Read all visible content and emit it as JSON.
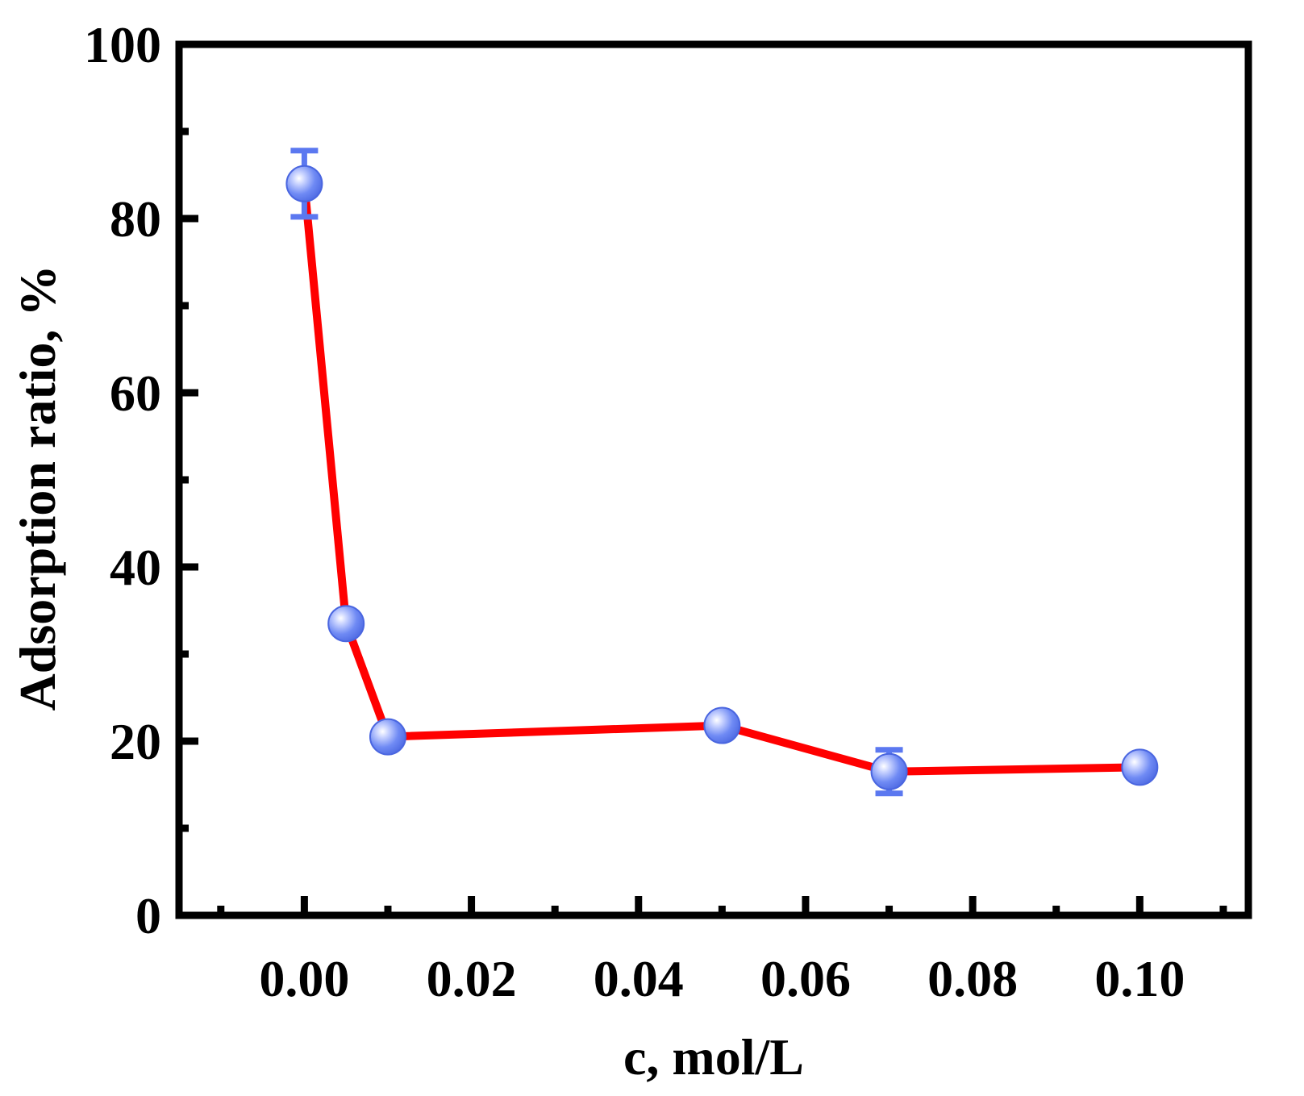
{
  "chart_data": {
    "type": "line",
    "title": "",
    "xlabel": "c, mol/L",
    "ylabel": "Adsorption ratio, %",
    "xlim": [
      -0.015,
      0.113
    ],
    "ylim": [
      0,
      100
    ],
    "x_ticks": [
      0.0,
      0.02,
      0.04,
      0.06,
      0.08,
      0.1
    ],
    "x_tick_labels": [
      "0.00",
      "0.02",
      "0.04",
      "0.06",
      "0.08",
      "0.10"
    ],
    "x_minor_ticks": [
      -0.01,
      0.01,
      0.03,
      0.05,
      0.07,
      0.09,
      0.11
    ],
    "y_ticks": [
      0,
      20,
      40,
      60,
      80,
      100
    ],
    "y_tick_labels": [
      "0",
      "20",
      "40",
      "60",
      "80",
      "100"
    ],
    "y_minor_ticks": [
      10,
      30,
      50,
      70,
      90
    ],
    "grid": false,
    "series": [
      {
        "x": [
          0.0,
          0.005,
          0.01,
          0.05,
          0.07,
          0.1
        ],
        "y": [
          84.0,
          33.5,
          20.5,
          21.8,
          16.5,
          17.0
        ],
        "error": [
          3.8,
          0.6,
          0.6,
          0.6,
          2.5,
          0.6
        ],
        "line_color": "#ff0000",
        "marker_color": "#5b78f0",
        "marker_highlight": "#e8ecff"
      }
    ]
  }
}
